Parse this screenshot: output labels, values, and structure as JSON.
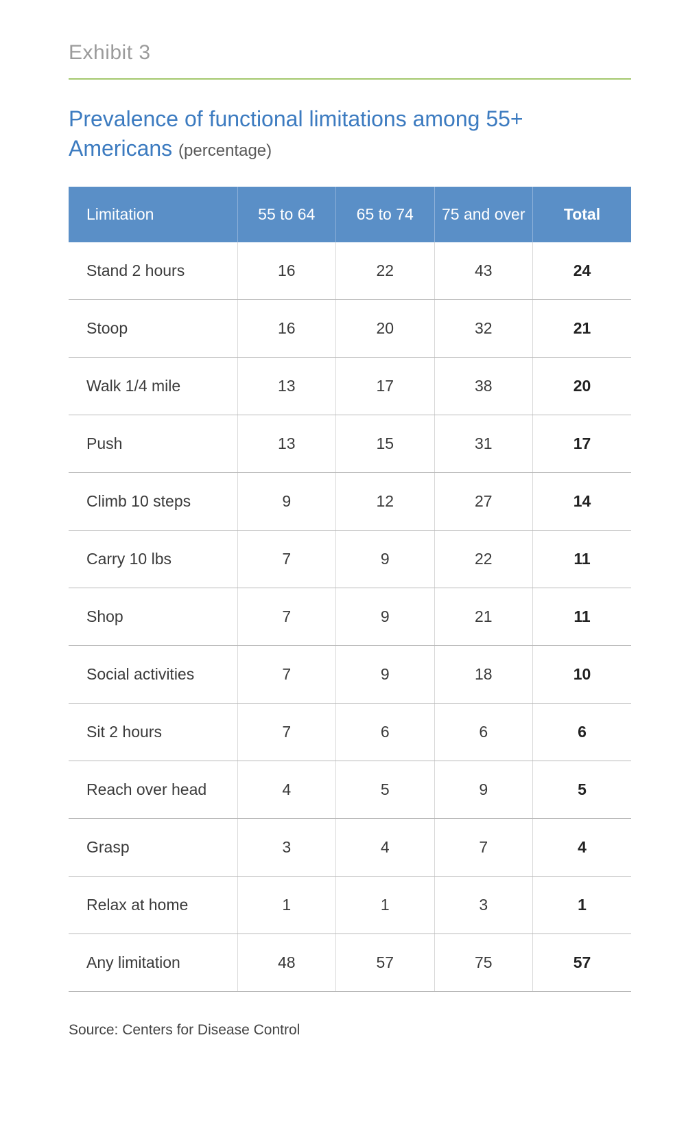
{
  "exhibit_label": "Exhibit 3",
  "title_main": "Prevalence of functional limitations among 55+ Americans",
  "title_sub": "(percentage)",
  "table": {
    "type": "table",
    "header_bg": "#5a8fc7",
    "header_text_color": "#ffffff",
    "header_divider_color": "#8eb1d9",
    "row_divider_color": "#b8b8b8",
    "cell_divider_color": "#d9d9d9",
    "body_text_color": "#3a3a3a",
    "total_text_color": "#222222",
    "font_size_pt": 17,
    "column_widths_pct": [
      30,
      17.5,
      17.5,
      17.5,
      17.5
    ],
    "columns": [
      "Limitation",
      "55 to 64",
      "65 to 74",
      "75 and over",
      "Total"
    ],
    "rows": [
      [
        "Stand 2 hours",
        16,
        22,
        43,
        24
      ],
      [
        "Stoop",
        16,
        20,
        32,
        21
      ],
      [
        "Walk 1/4 mile",
        13,
        17,
        38,
        20
      ],
      [
        "Push",
        13,
        15,
        31,
        17
      ],
      [
        "Climb 10 steps",
        9,
        12,
        27,
        14
      ],
      [
        "Carry 10 lbs",
        7,
        9,
        22,
        11
      ],
      [
        "Shop",
        7,
        9,
        21,
        11
      ],
      [
        "Social activities",
        7,
        9,
        18,
        10
      ],
      [
        "Sit 2 hours",
        7,
        6,
        6,
        6
      ],
      [
        "Reach over head",
        4,
        5,
        9,
        5
      ],
      [
        "Grasp",
        3,
        4,
        7,
        4
      ],
      [
        "Relax at home",
        1,
        1,
        3,
        1
      ],
      [
        "Any limitation",
        48,
        57,
        75,
        57
      ]
    ]
  },
  "source": "Source: Centers for Disease Control",
  "colors": {
    "page_bg": "#ffffff",
    "exhibit_label": "#9b9b9b",
    "accent_rule": "#a3c86d",
    "title": "#3c7bc0",
    "title_sub": "#5a5a5a"
  }
}
